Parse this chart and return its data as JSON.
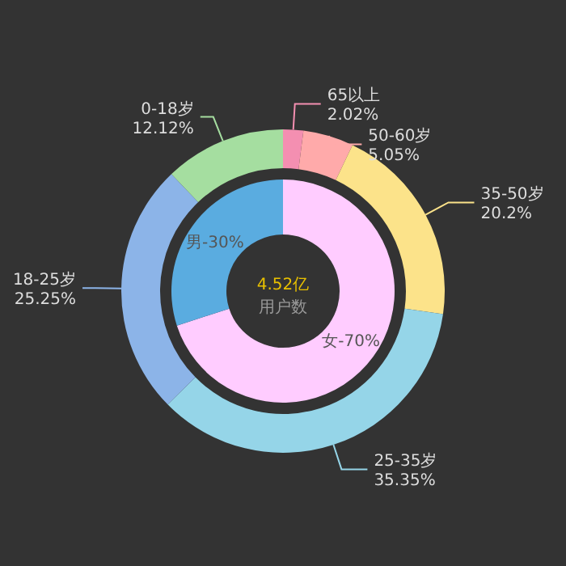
{
  "chart_data": [
    {
      "type": "donut",
      "title": "4.52亿",
      "subtitle": "用户数",
      "categories": [
        "女",
        "男"
      ],
      "values": [
        70,
        30
      ],
      "value_labels": [
        "70%",
        "30%"
      ],
      "colors": [
        "#ffccff",
        "#5aace0"
      ]
    },
    {
      "type": "donut",
      "categories": [
        "65以上",
        "50-60岁",
        "35-50岁",
        "25-35岁",
        "18-25岁",
        "0-18岁"
      ],
      "values": [
        2.02,
        5.05,
        20.2,
        35.35,
        25.25,
        12.12
      ],
      "value_labels": [
        "2.02%",
        "5.05%",
        "20.2%",
        "35.35%",
        "25.25%",
        "12.12%"
      ],
      "colors": [
        "#f48fb1",
        "#ffaaaa",
        "#fce38a",
        "#95d5e8",
        "#8cb4e8",
        "#a5dea0"
      ]
    }
  ]
}
